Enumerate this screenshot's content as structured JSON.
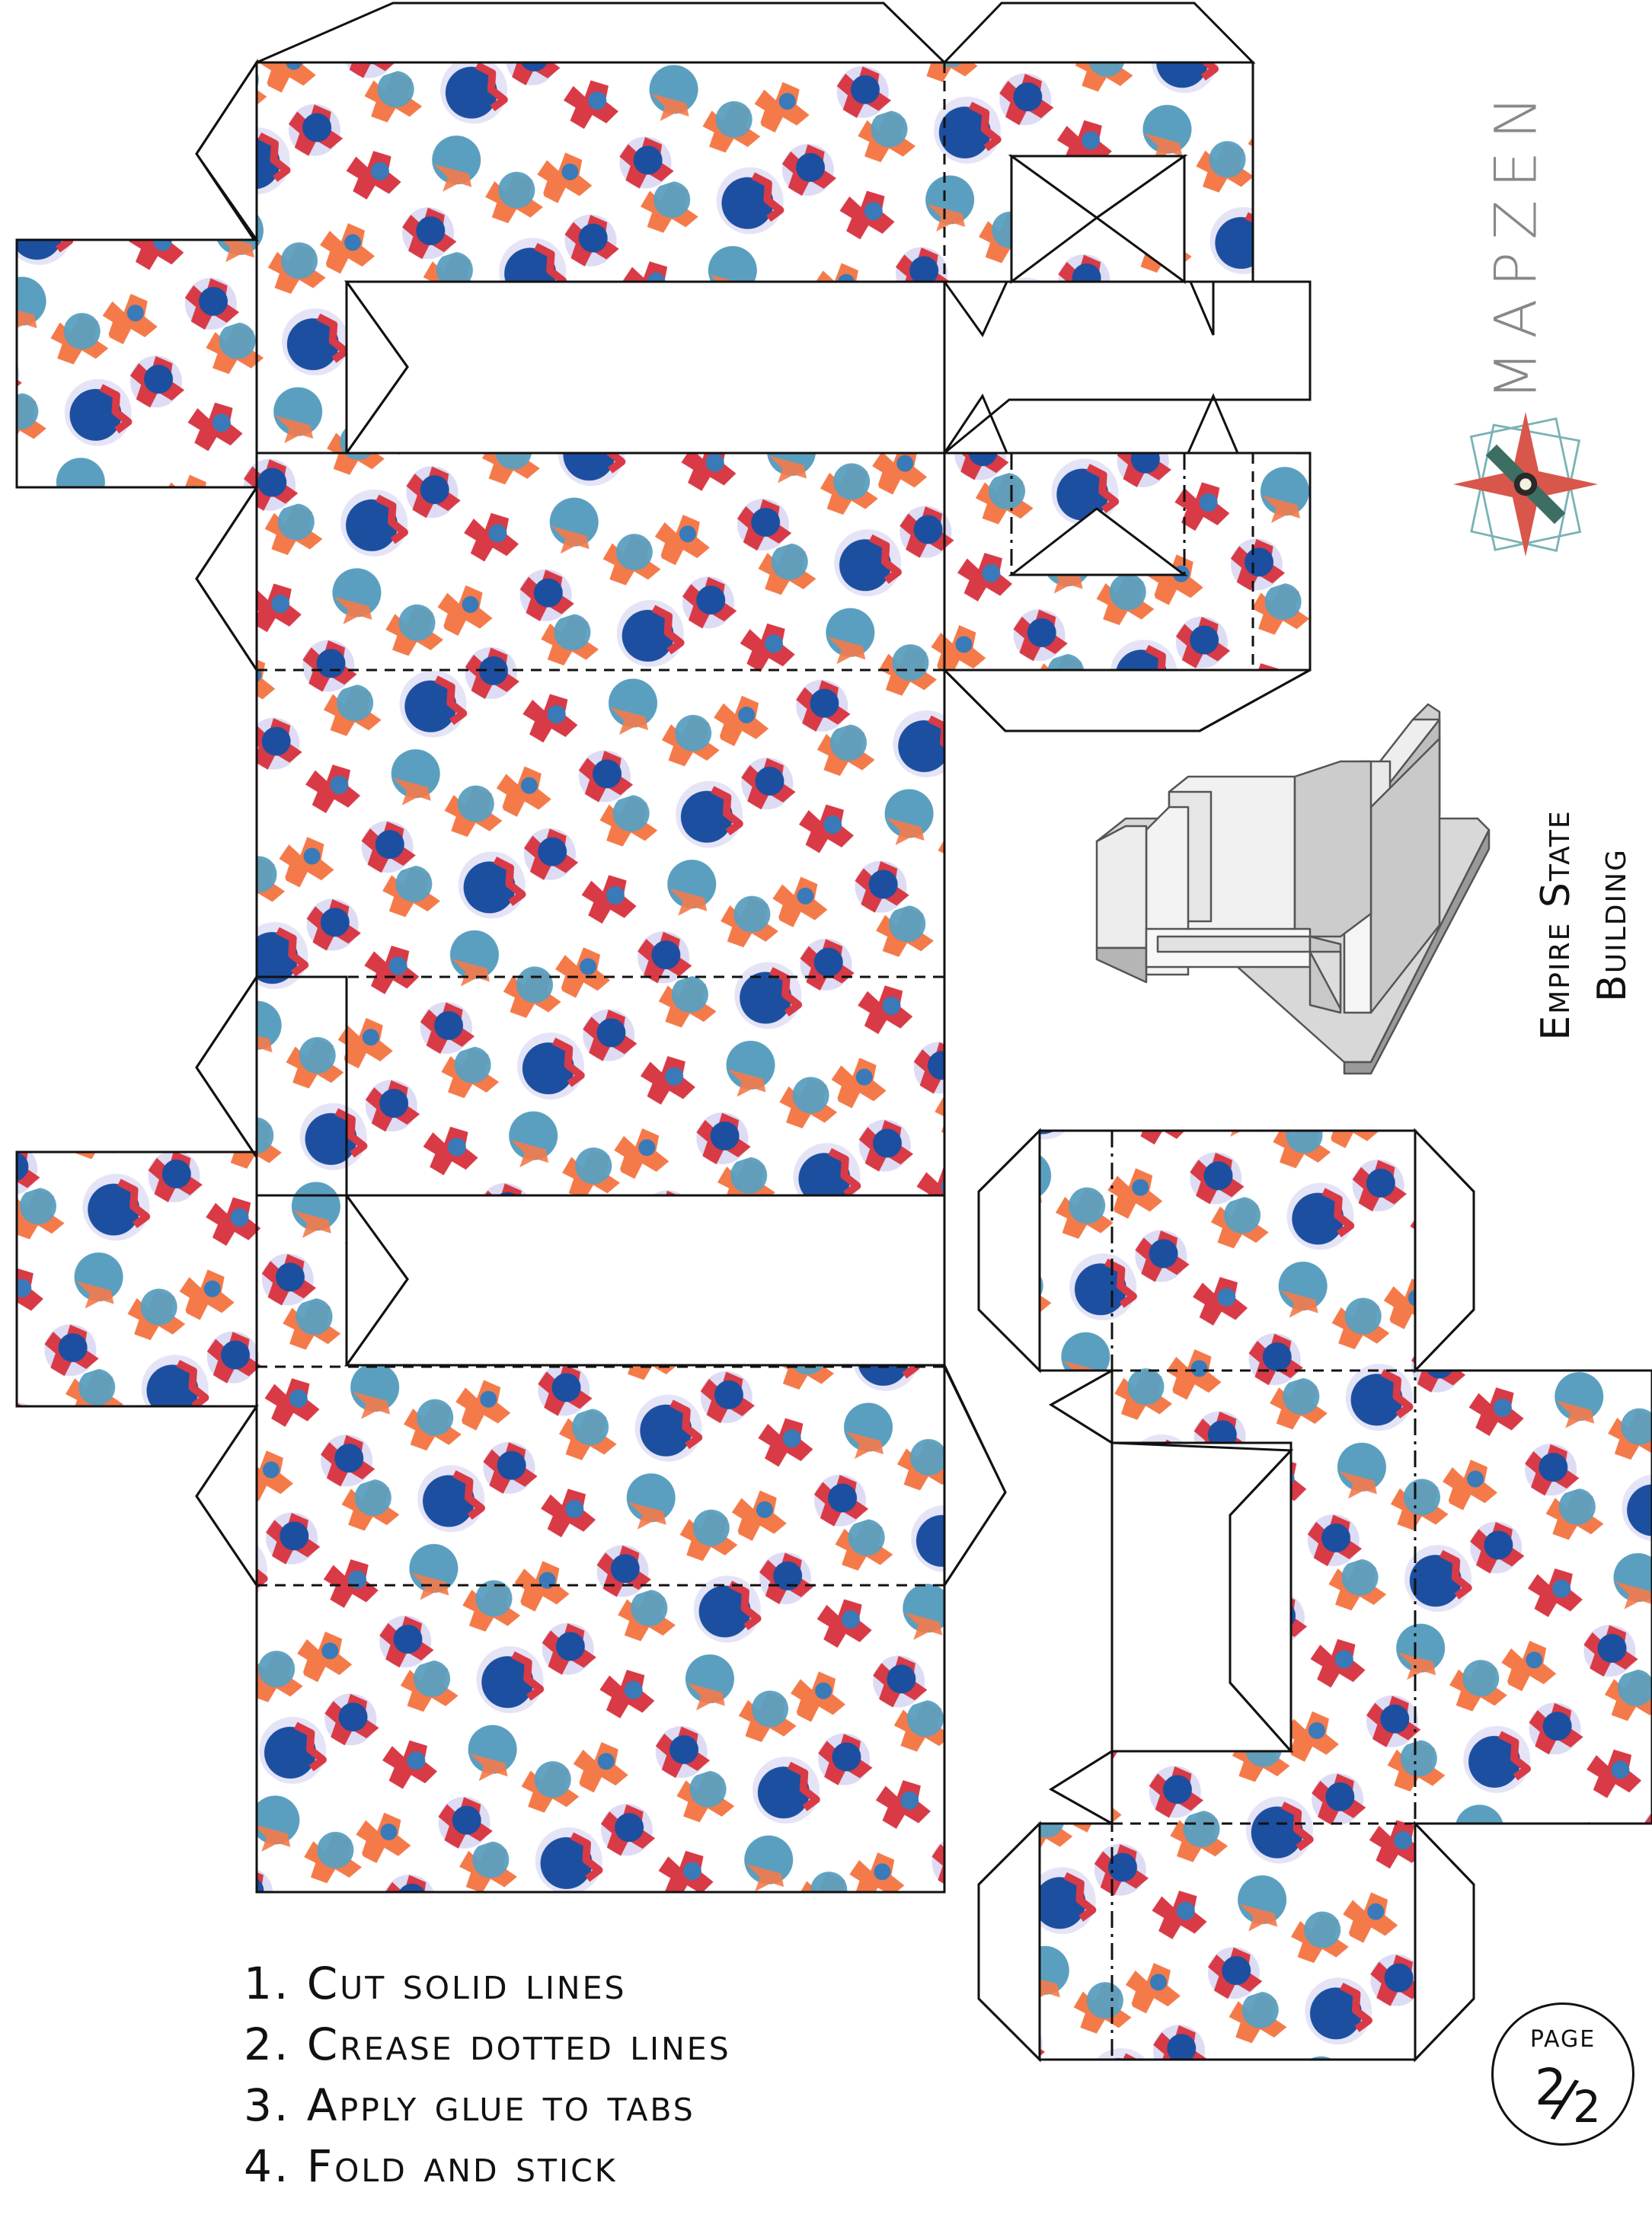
{
  "brand": {
    "name": "MAPZEN",
    "logo_icon": "compass-star-icon",
    "colors": {
      "star": "#d9564a",
      "bars": "#3d6e63",
      "frame": "#7ab3b7",
      "text": "#888888"
    }
  },
  "model": {
    "title_line1": "Empire State",
    "title_line2": "Building",
    "preview_icon": "building-3d-icon"
  },
  "instructions": [
    "1. Cut solid lines",
    "2. Crease dotted lines",
    "3. Apply glue to tabs",
    "4. Fold and stick"
  ],
  "page": {
    "label": "PAGE",
    "current": "2",
    "total": "2"
  },
  "pattern": {
    "description_icon": "dot-pattern-texture",
    "colors": {
      "red": "#d83a46",
      "orange": "#f47a4a",
      "navy": "#1c4fa0",
      "blue": "#3a7ab8",
      "teal": "#5a9fbf",
      "lavender": "#cfcdf0"
    }
  },
  "line_styles": {
    "cut": "solid",
    "crease": "dashed",
    "inner_fold": "dash-dot"
  }
}
